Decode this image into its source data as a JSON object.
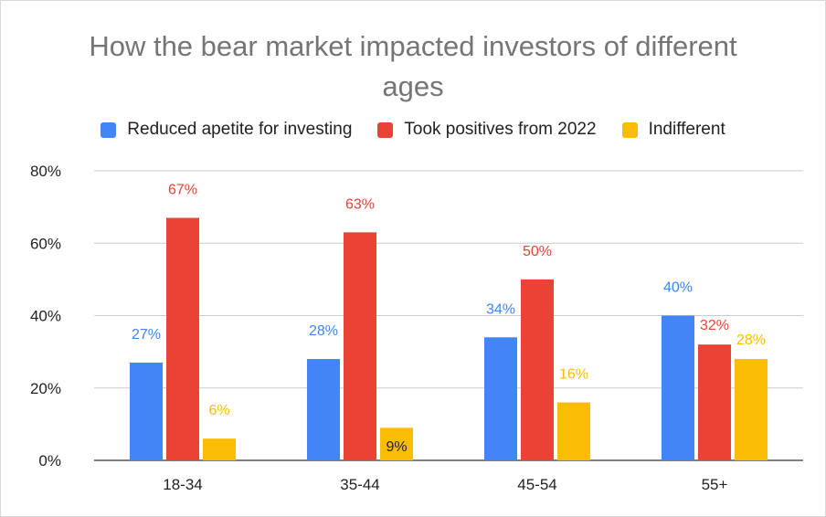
{
  "chart_data": {
    "type": "bar",
    "title": "How the bear market impacted investors of different ages",
    "title_lines": [
      "How the bear market impacted investors of different",
      "ages"
    ],
    "categories": [
      "18-34",
      "35-44",
      "45-54",
      "55+"
    ],
    "series": [
      {
        "name": "Reduced apetite for investing",
        "color": "#4285f4",
        "values": [
          27,
          28,
          34,
          40
        ],
        "labels": [
          "27%",
          "28%",
          "34%",
          "40%"
        ]
      },
      {
        "name": "Took positives from 2022",
        "color": "#ea4335",
        "values": [
          67,
          63,
          50,
          32
        ],
        "labels": [
          "67%",
          "63%",
          "50%",
          "32%"
        ]
      },
      {
        "name": "Indifferent",
        "color": "#fbbc04",
        "values": [
          6,
          9,
          16,
          28
        ],
        "labels": [
          "6%",
          "9%",
          "16%",
          "28%"
        ]
      }
    ],
    "yticks": [
      "0%",
      "20%",
      "40%",
      "60%",
      "80%"
    ],
    "ytick_values": [
      0,
      20,
      40,
      60,
      80
    ],
    "ylim": [
      0,
      80
    ],
    "xlabel": "",
    "ylabel": "",
    "legend_position": "top",
    "grid": true
  }
}
